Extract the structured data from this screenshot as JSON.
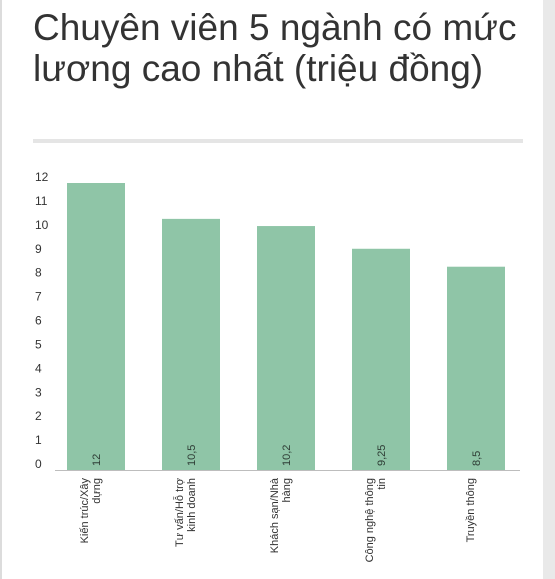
{
  "title": "Chuyên viên 5 ngành có mức lương cao nhất (triệu đồng)",
  "colors": {
    "bar": "#8fc5a7",
    "axis": "#bdbdbd"
  },
  "chart_data": {
    "type": "bar",
    "title": "Chuyên viên 5 ngành có mức lương cao nhất (triệu đồng)",
    "xlabel": "",
    "ylabel": "",
    "ylim": [
      0,
      12
    ],
    "yticks": [
      "0",
      "1",
      "2",
      "3",
      "4",
      "5",
      "6",
      "7",
      "8",
      "9",
      "10",
      "11",
      "12"
    ],
    "grid": false,
    "categories": [
      [
        "Kiến trúc/Xây",
        "dựng"
      ],
      [
        "Tư vấn/Hỗ trợ",
        "kinh doanh"
      ],
      [
        "Khách sạn/Nhà",
        "hàng"
      ],
      [
        "Công nghệ thông",
        "tin"
      ],
      [
        "Truyền thông"
      ]
    ],
    "values": [
      12,
      10.5,
      10.2,
      9.25,
      8.5
    ],
    "data_labels": [
      "12",
      "10,5",
      "10,2",
      "9,25",
      "8,5"
    ]
  }
}
